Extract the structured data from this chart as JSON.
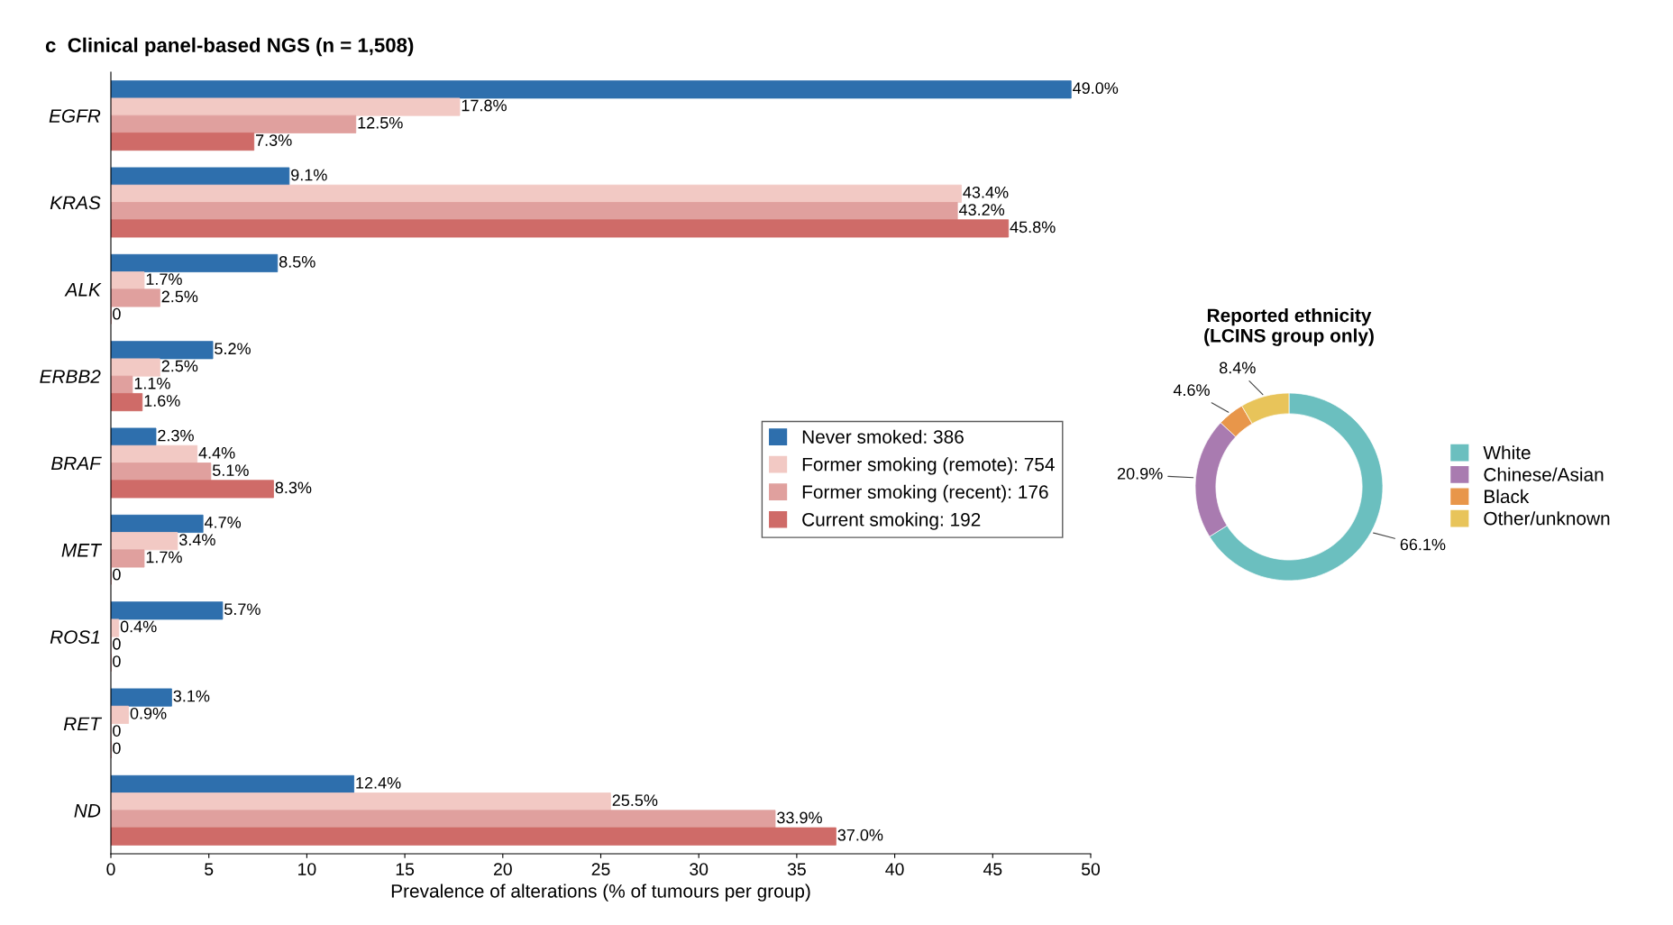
{
  "chart_data": [
    {
      "type": "bar",
      "orientation": "horizontal",
      "title": "c  Clinical panel-based NGS (n = 1,508)",
      "xlabel": "Prevalence of alterations (% of tumours per group)",
      "categories": [
        "EGFR",
        "KRAS",
        "ALK",
        "ERBB2",
        "BRAF",
        "MET",
        "ROS1",
        "RET",
        "ND"
      ],
      "series": [
        {
          "name": "Never smoked: 386",
          "color": "#2e6fad",
          "values": [
            49.0,
            9.1,
            8.5,
            5.2,
            2.3,
            4.7,
            5.7,
            3.1,
            12.4
          ],
          "value_labels": [
            "49.0%",
            "9.1%",
            "8.5%",
            "5.2%",
            "2.3%",
            "4.7%",
            "5.7%",
            "3.1%",
            "12.4%"
          ]
        },
        {
          "name": "Former smoking (remote): 754",
          "color": "#f2c9c4",
          "values": [
            17.8,
            43.4,
            1.7,
            2.5,
            4.4,
            3.4,
            0.4,
            0.9,
            25.5
          ],
          "value_labels": [
            "17.8%",
            "43.4%",
            "1.7%",
            "2.5%",
            "4.4%",
            "3.4%",
            "0.4%",
            "0.9%",
            "25.5%"
          ]
        },
        {
          "name": "Former smoking (recent): 176",
          "color": "#e0a09e",
          "values": [
            12.5,
            43.2,
            2.5,
            1.1,
            5.1,
            1.7,
            0,
            0,
            33.9
          ],
          "value_labels": [
            "12.5%",
            "43.2%",
            "2.5%",
            "1.1%",
            "5.1%",
            "1.7%",
            "0",
            "0",
            "33.9%"
          ]
        },
        {
          "name": "Current smoking: 192",
          "color": "#cf6b68",
          "values": [
            7.3,
            45.8,
            0,
            1.6,
            8.3,
            0,
            0,
            0,
            37.0
          ],
          "value_labels": [
            "7.3%",
            "45.8%",
            "0",
            "1.6%",
            "8.3%",
            "0",
            "0",
            "0",
            "37.0%"
          ]
        }
      ],
      "xlim": [
        0,
        50
      ],
      "xticks": [
        0,
        5,
        10,
        15,
        20,
        25,
        30,
        35,
        40,
        45,
        50
      ],
      "grid": false,
      "legend": "right"
    },
    {
      "type": "donut",
      "title": "Reported ethnicity\n(LCINS group only)",
      "categories": [
        "White",
        "Chinese/Asian",
        "Black",
        "Other/unknown"
      ],
      "values": [
        66.1,
        20.9,
        4.6,
        8.4
      ],
      "value_labels": [
        "66.1%",
        "20.9%",
        "4.6%",
        "8.4%"
      ],
      "colors": [
        "#6bbfbf",
        "#a97bb0",
        "#e8964a",
        "#e8c45a"
      ],
      "legend": "right"
    }
  ]
}
